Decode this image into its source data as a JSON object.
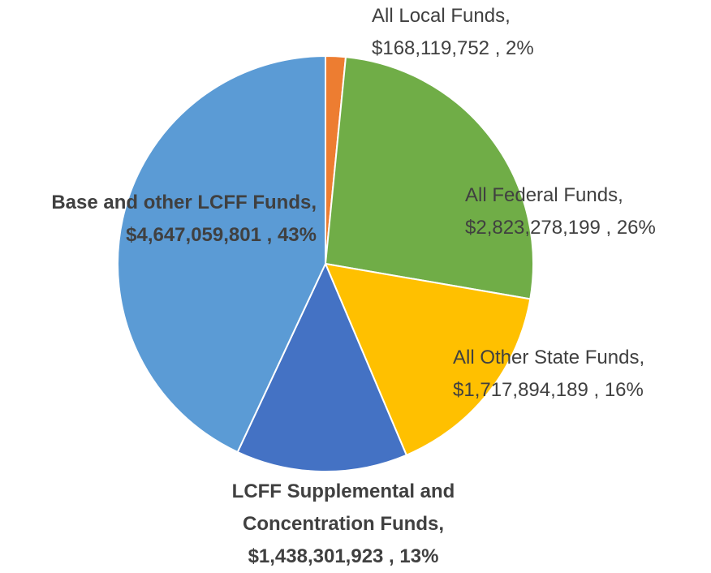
{
  "chart_data": {
    "type": "pie",
    "categories": [
      "All Local Funds,",
      "All Federal Funds,",
      "All Other State Funds,",
      "LCFF Supplemental and Concentration Funds,",
      "Base and other LCFF Funds,"
    ],
    "values": [
      168119752,
      2823278199,
      1717894189,
      1438301923,
      4647059801
    ],
    "value_labels": [
      "$168,119,752 , 2%",
      "$2,823,278,199 , 26%",
      "$1,717,894,189 , 16%",
      "$1,438,301,923 , 13%",
      "$4,647,059,801 , 43%"
    ],
    "colors": [
      "#ed7d31",
      "#70ad47",
      "#ffc000",
      "#4472c4",
      "#5b9bd5"
    ]
  }
}
